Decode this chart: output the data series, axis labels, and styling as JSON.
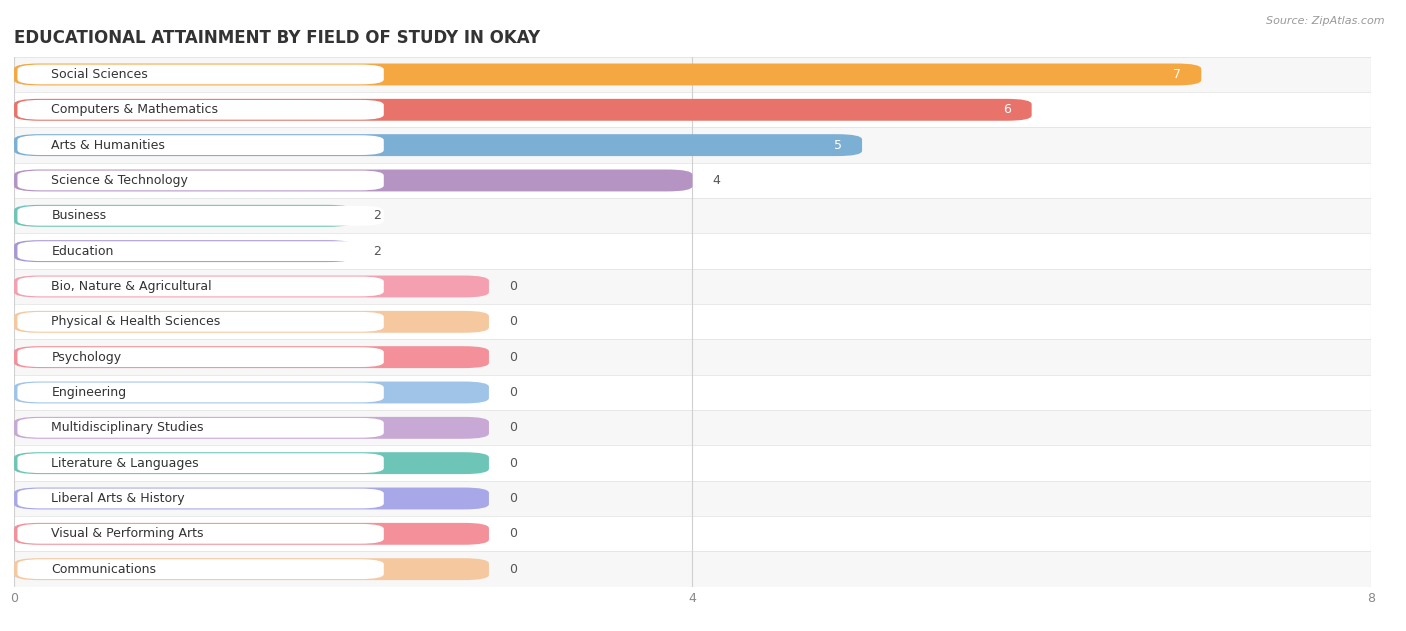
{
  "title": "EDUCATIONAL ATTAINMENT BY FIELD OF STUDY IN OKAY",
  "source": "Source: ZipAtlas.com",
  "categories": [
    "Social Sciences",
    "Computers & Mathematics",
    "Arts & Humanities",
    "Science & Technology",
    "Business",
    "Education",
    "Bio, Nature & Agricultural",
    "Physical & Health Sciences",
    "Psychology",
    "Engineering",
    "Multidisciplinary Studies",
    "Literature & Languages",
    "Liberal Arts & History",
    "Visual & Performing Arts",
    "Communications"
  ],
  "values": [
    7,
    6,
    5,
    4,
    2,
    2,
    0,
    0,
    0,
    0,
    0,
    0,
    0,
    0,
    0
  ],
  "colors": [
    "#F5A742",
    "#E8736A",
    "#7BAFD4",
    "#B594C4",
    "#6DC5B8",
    "#A899D4",
    "#F4A0B0",
    "#F5C8A0",
    "#F4909A",
    "#A0C4E8",
    "#C8A8D4",
    "#6DC5B8",
    "#A8A8E8",
    "#F4909A",
    "#F5C8A0"
  ],
  "xlim": [
    0,
    8
  ],
  "xticks": [
    0,
    4,
    8
  ],
  "bg_row_color": "#f0f0f0",
  "bg_row_alt_color": "#ffffff",
  "bar_separator_color": "#e0e0e0",
  "title_fontsize": 12,
  "label_fontsize": 9,
  "value_fontsize": 9
}
